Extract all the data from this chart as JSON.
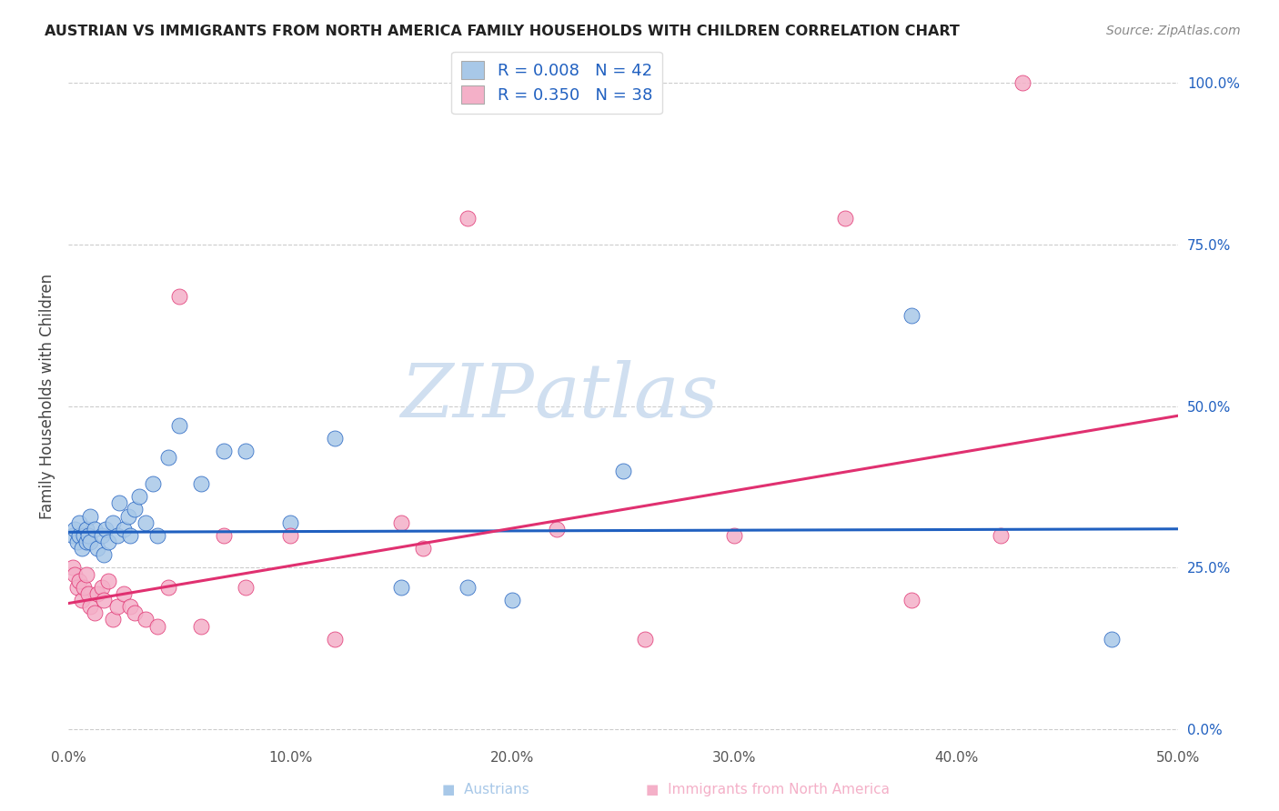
{
  "title": "AUSTRIAN VS IMMIGRANTS FROM NORTH AMERICA FAMILY HOUSEHOLDS WITH CHILDREN CORRELATION CHART",
  "source": "Source: ZipAtlas.com",
  "ylabel": "Family Households with Children",
  "xlim": [
    0.0,
    0.5
  ],
  "ylim": [
    -0.02,
    1.05
  ],
  "legend1_label": "R = 0.008   N = 42",
  "legend2_label": "R = 0.350   N = 38",
  "color_blue": "#a8c8e8",
  "color_pink": "#f4b0c8",
  "trendline_blue_color": "#2060c0",
  "trendline_pink_color": "#e03070",
  "watermark_color": "#d0dff0",
  "blue_x": [
    0.002,
    0.003,
    0.004,
    0.005,
    0.005,
    0.006,
    0.007,
    0.008,
    0.008,
    0.009,
    0.01,
    0.01,
    0.012,
    0.013,
    0.015,
    0.016,
    0.017,
    0.018,
    0.02,
    0.022,
    0.023,
    0.025,
    0.027,
    0.028,
    0.03,
    0.032,
    0.035,
    0.038,
    0.04,
    0.045,
    0.05,
    0.06,
    0.07,
    0.08,
    0.1,
    0.12,
    0.15,
    0.18,
    0.2,
    0.25,
    0.38,
    0.47
  ],
  "blue_y": [
    0.3,
    0.31,
    0.29,
    0.3,
    0.32,
    0.28,
    0.3,
    0.29,
    0.31,
    0.3,
    0.29,
    0.33,
    0.31,
    0.28,
    0.3,
    0.27,
    0.31,
    0.29,
    0.32,
    0.3,
    0.35,
    0.31,
    0.33,
    0.3,
    0.34,
    0.36,
    0.32,
    0.38,
    0.3,
    0.42,
    0.47,
    0.38,
    0.43,
    0.43,
    0.32,
    0.45,
    0.22,
    0.22,
    0.2,
    0.4,
    0.64,
    0.14
  ],
  "pink_x": [
    0.002,
    0.003,
    0.004,
    0.005,
    0.006,
    0.007,
    0.008,
    0.009,
    0.01,
    0.012,
    0.013,
    0.015,
    0.016,
    0.018,
    0.02,
    0.022,
    0.025,
    0.028,
    0.03,
    0.035,
    0.04,
    0.045,
    0.05,
    0.06,
    0.07,
    0.08,
    0.1,
    0.12,
    0.15,
    0.16,
    0.18,
    0.22,
    0.26,
    0.3,
    0.35,
    0.38,
    0.42,
    0.43
  ],
  "pink_y": [
    0.25,
    0.24,
    0.22,
    0.23,
    0.2,
    0.22,
    0.24,
    0.21,
    0.19,
    0.18,
    0.21,
    0.22,
    0.2,
    0.23,
    0.17,
    0.19,
    0.21,
    0.19,
    0.18,
    0.17,
    0.16,
    0.22,
    0.67,
    0.16,
    0.3,
    0.22,
    0.3,
    0.14,
    0.32,
    0.28,
    0.79,
    0.31,
    0.14,
    0.3,
    0.79,
    0.2,
    0.3,
    1.0
  ],
  "blue_trendline_x": [
    0.0,
    0.5
  ],
  "blue_trendline_y": [
    0.305,
    0.31
  ],
  "pink_trendline_x": [
    0.0,
    0.5
  ],
  "pink_trendline_y": [
    0.195,
    0.485
  ]
}
